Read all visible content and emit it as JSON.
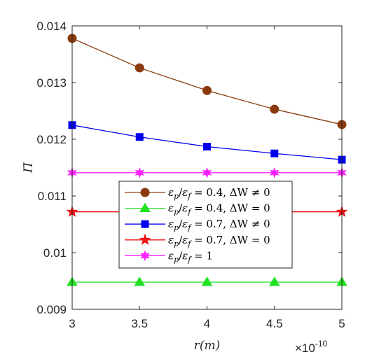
{
  "chart_data": {
    "type": "line",
    "xlabel": "r(m)",
    "ylabel": "Π̄",
    "x_exponent_label": "×10",
    "x_exponent_power": "-10",
    "x": [
      3,
      3.5,
      4,
      4.5,
      5
    ],
    "x_ticks": [
      "3",
      "3.5",
      "4",
      "4.5",
      "5"
    ],
    "y_ticks": [
      "0.009",
      "0.01",
      "0.011",
      "0.012",
      "0.013",
      "0.014"
    ],
    "y_tick_values": [
      0.009,
      0.01,
      0.011,
      0.012,
      0.013,
      0.014
    ],
    "xlim": [
      3,
      5
    ],
    "ylim": [
      0.009,
      0.014
    ],
    "grid": false,
    "legend_position": "center",
    "series": [
      {
        "name": "εp/εf = 0.4, ΔW ≠ 0",
        "color": "#8b3a0f",
        "marker": "circle",
        "values": [
          0.01378,
          0.01326,
          0.01286,
          0.01253,
          0.01226
        ]
      },
      {
        "name": "εp/εf = 0.4, ΔW = 0",
        "color": "#22e022",
        "marker": "triangle",
        "values": [
          0.00948,
          0.00948,
          0.00948,
          0.00948,
          0.00948
        ]
      },
      {
        "name": "εp/εf = 0.7, ΔW ≠ 0",
        "color": "#0000ee",
        "marker": "square",
        "values": [
          0.01225,
          0.01204,
          0.01187,
          0.01175,
          0.01164
        ]
      },
      {
        "name": "εp/εf = 0.7, ΔW = 0",
        "color": "#ee1111",
        "marker": "star",
        "values": [
          0.01072,
          0.01072,
          0.01072,
          0.01072,
          0.01072
        ]
      },
      {
        "name": "εp/εf = 1",
        "color": "#ff22ff",
        "marker": "hexstar",
        "values": [
          0.01141,
          0.01141,
          0.01141,
          0.01141,
          0.01141
        ]
      }
    ]
  }
}
